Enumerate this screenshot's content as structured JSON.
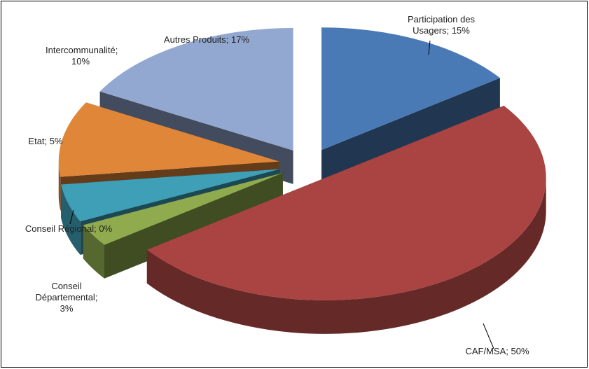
{
  "chart_data": {
    "type": "pie3d",
    "categories": [
      "Participation des Usagers",
      "CAF/MSA",
      "Conseil Départemental",
      "Conseil Régional",
      "Etat",
      "Intercommunalité",
      "Autres Produits"
    ],
    "values": [
      15,
      50,
      3,
      0,
      5,
      10,
      17
    ],
    "value_labels": [
      "15%",
      "50%",
      "3%",
      "0%",
      "5%",
      "10%",
      "17%"
    ],
    "separator": "; ",
    "colors": [
      "#4a7ab5",
      "#a94442",
      "#8fab4e",
      "#7a5f9a",
      "#3e9fb7",
      "#df8639",
      "#93a8d1"
    ]
  }
}
